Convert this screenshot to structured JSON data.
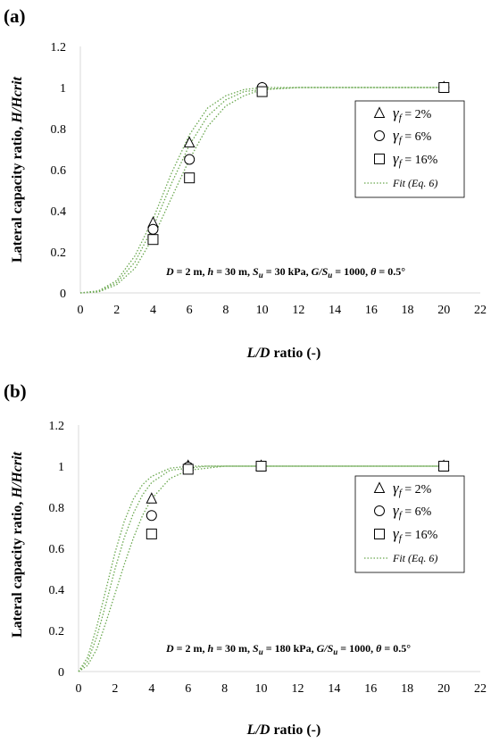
{
  "panels": [
    {
      "label": "(a)",
      "ylabel_prefix": "Lateral capacity ratio, ",
      "ylabel_italic": "H/Hcrit",
      "xlabel_italic": "L/D",
      "xlabel_suffix": " ratio (-)",
      "annotation": {
        "d": "D",
        "d_val": " = 2 m, ",
        "h": "h",
        "h_val": " = 30 m, ",
        "su": "S",
        "su_sub": "u",
        "su_val": " = 30 kPa, ",
        "g": "G/S",
        "g_sub": "u",
        "g_val": " = 1000, ",
        "theta": "θ",
        "theta_val": " = 0.5°"
      },
      "legend": {
        "gamma": "γ",
        "gamma_sub": "f",
        "entries": [
          " = 2%",
          " = 6%",
          " = 16%"
        ],
        "fit": "Fit (Eq. 6)"
      }
    },
    {
      "label": "(b)",
      "ylabel_prefix": "Lateral capacity ratio, ",
      "ylabel_italic": "H/Hcrit",
      "xlabel_italic": "L/D",
      "xlabel_suffix": " ratio (-)",
      "annotation": {
        "d": "D",
        "d_val": " = 2 m, ",
        "h": "h",
        "h_val": " = 30 m, ",
        "su": "S",
        "su_sub": "u",
        "su_val": " = 180 kPa, ",
        "g": "G/S",
        "g_sub": "u",
        "g_val": " = 1000, ",
        "theta": "θ",
        "theta_val": " = 0.5°"
      },
      "legend": {
        "gamma": "γ",
        "gamma_sub": "f",
        "entries": [
          " = 2%",
          " = 6%",
          " = 16%"
        ],
        "fit": "Fit (Eq. 6)"
      }
    }
  ],
  "colors": {
    "fit": "#6aa84f",
    "axis": "#d9d9d9",
    "marker": "#000000"
  },
  "chart_data": [
    {
      "type": "scatter",
      "xlim": [
        0,
        22
      ],
      "ylim": [
        0,
        1.2
      ],
      "x_ticks": [
        "0",
        "2",
        "4",
        "6",
        "8",
        "10",
        "12",
        "14",
        "16",
        "18",
        "20",
        "22"
      ],
      "y_ticks": [
        "0",
        "0.2",
        "0.4",
        "0.6",
        "0.8",
        "1",
        "1.2"
      ],
      "grid": false,
      "legend_position": "right",
      "series": [
        {
          "marker": "triangle",
          "x": [
            4,
            6,
            10,
            20
          ],
          "y": [
            0.34,
            0.73,
            0.995,
            1.0
          ]
        },
        {
          "marker": "circle",
          "x": [
            4,
            6,
            10,
            20
          ],
          "y": [
            0.31,
            0.65,
            1.0,
            1.0
          ]
        },
        {
          "marker": "square",
          "x": [
            4,
            6,
            10,
            20
          ],
          "y": [
            0.26,
            0.56,
            0.98,
            1.0
          ]
        }
      ],
      "fit_curves": [
        {
          "x": [
            0,
            1,
            2,
            3,
            4,
            5,
            6,
            7,
            8,
            9,
            10,
            12,
            14,
            16,
            18,
            20
          ],
          "y": [
            0,
            0.01,
            0.06,
            0.18,
            0.36,
            0.58,
            0.77,
            0.9,
            0.96,
            0.99,
            1,
            1,
            1,
            1,
            1,
            1
          ]
        },
        {
          "x": [
            0,
            1,
            2,
            3,
            4,
            5,
            6,
            7,
            8,
            9,
            10,
            12,
            14,
            16,
            18,
            20
          ],
          "y": [
            0,
            0.008,
            0.05,
            0.15,
            0.32,
            0.53,
            0.72,
            0.86,
            0.94,
            0.98,
            0.99,
            1,
            1,
            1,
            1,
            1
          ]
        },
        {
          "x": [
            0,
            1,
            2,
            3,
            4,
            5,
            6,
            7,
            8,
            9,
            10,
            12,
            14,
            16,
            18,
            20
          ],
          "y": [
            0,
            0.005,
            0.04,
            0.12,
            0.27,
            0.46,
            0.65,
            0.81,
            0.91,
            0.96,
            0.99,
            1,
            1,
            1,
            1,
            1
          ]
        }
      ]
    },
    {
      "type": "scatter",
      "xlim": [
        0,
        22
      ],
      "ylim": [
        0,
        1.2
      ],
      "x_ticks": [
        "0",
        "2",
        "4",
        "6",
        "8",
        "10",
        "12",
        "14",
        "16",
        "18",
        "20",
        "22"
      ],
      "y_ticks": [
        "0",
        "0.2",
        "0.4",
        "0.6",
        "0.8",
        "1",
        "1.2"
      ],
      "grid": false,
      "legend_position": "right",
      "series": [
        {
          "marker": "triangle",
          "x": [
            4,
            6,
            10,
            20
          ],
          "y": [
            0.84,
            1.0,
            1.0,
            1.0
          ]
        },
        {
          "marker": "circle",
          "x": [
            4,
            6,
            10,
            20
          ],
          "y": [
            0.76,
            0.995,
            1.0,
            1.0
          ]
        },
        {
          "marker": "square",
          "x": [
            4,
            6,
            10,
            20
          ],
          "y": [
            0.67,
            0.985,
            1.0,
            1.0
          ]
        }
      ],
      "fit_curves": [
        {
          "x": [
            0,
            0.5,
            1,
            1.5,
            2,
            2.5,
            3,
            3.5,
            4,
            5,
            6,
            7,
            8,
            10,
            14,
            20
          ],
          "y": [
            0,
            0.07,
            0.22,
            0.4,
            0.58,
            0.73,
            0.84,
            0.91,
            0.95,
            0.99,
            1,
            1,
            1,
            1,
            1,
            1
          ]
        },
        {
          "x": [
            0,
            0.5,
            1,
            1.5,
            2,
            2.5,
            3,
            3.5,
            4,
            5,
            6,
            7,
            8,
            10,
            14,
            20
          ],
          "y": [
            0,
            0.05,
            0.17,
            0.33,
            0.5,
            0.65,
            0.77,
            0.86,
            0.92,
            0.98,
            0.99,
            1,
            1,
            1,
            1,
            1
          ]
        },
        {
          "x": [
            0,
            0.5,
            1,
            1.5,
            2,
            2.5,
            3,
            3.5,
            4,
            5,
            6,
            7,
            8,
            10,
            14,
            20
          ],
          "y": [
            0,
            0.03,
            0.11,
            0.24,
            0.38,
            0.52,
            0.65,
            0.76,
            0.84,
            0.94,
            0.98,
            0.99,
            1,
            1,
            1,
            1
          ]
        }
      ]
    }
  ]
}
